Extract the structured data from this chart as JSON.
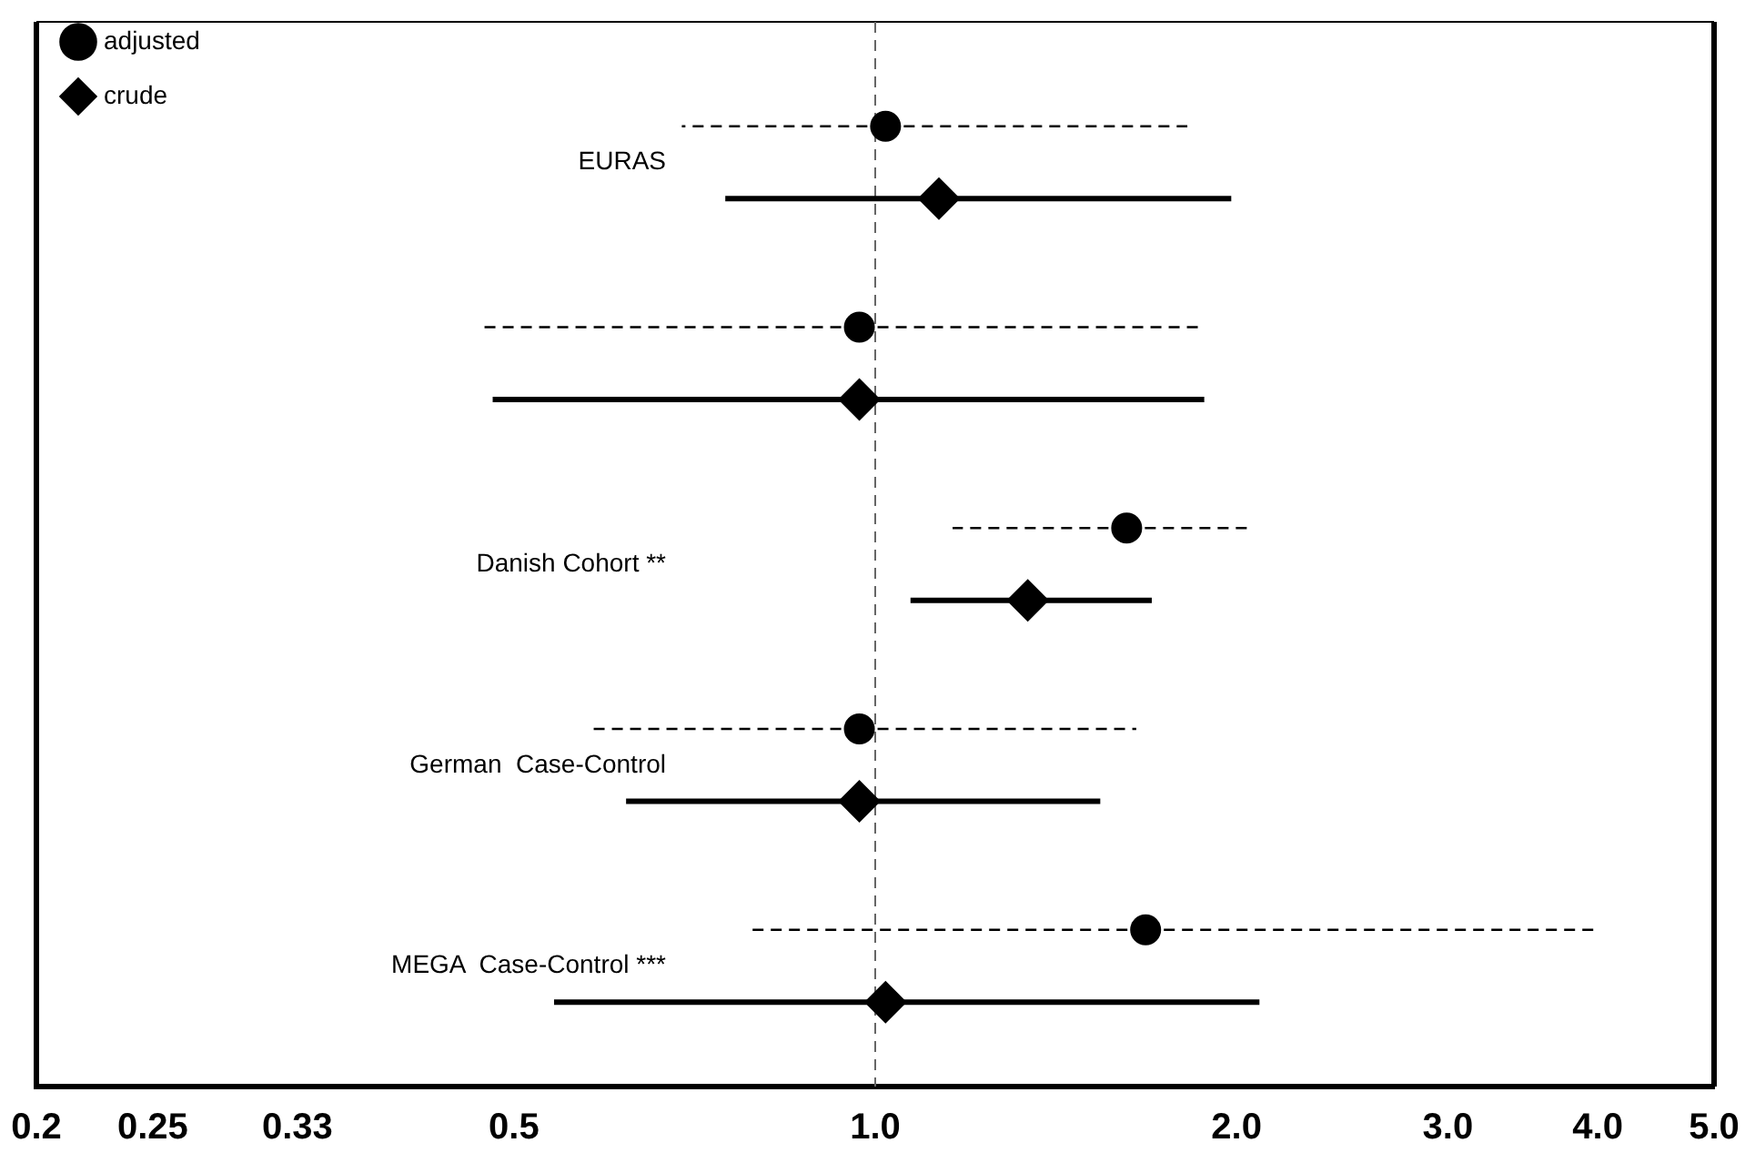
{
  "chart_data": {
    "type": "scatter",
    "orientation": "horizontal",
    "categories": [
      "EURAS",
      null,
      "Danish Cohort **",
      "German  Case-Control",
      "MEGA  Case-Control ***"
    ],
    "xlim": [
      0.2,
      5.0
    ],
    "xticks": [
      0.2,
      0.25,
      0.33,
      0.5,
      {
        "value": 1,
        "label": "1.0"
      },
      {
        "value": 2,
        "label": "2.0"
      },
      {
        "value": 3,
        "label": "3.0"
      },
      {
        "value": 4,
        "label": "4.0"
      },
      {
        "value": 5,
        "label": "5.0"
      }
    ],
    "series": [
      {
        "name": "adjusted",
        "color": "#000000",
        "marker": "circle",
        "line_style": "dashed",
        "values": [
          1.02,
          0.97,
          1.62,
          0.97,
          1.68
        ],
        "errors": [
          [
            0.69,
            1.82
          ],
          [
            0.47,
            1.86
          ],
          [
            1.16,
            2.05
          ],
          [
            0.58,
            1.65
          ],
          [
            0.79,
            3.97
          ]
        ]
      },
      {
        "name": "crude",
        "color": "#000000",
        "marker": "diamond",
        "line_style": "solid",
        "values": [
          1.13,
          0.97,
          1.34,
          0.97,
          1.02
        ],
        "errors": [
          [
            0.75,
            1.98
          ],
          [
            0.48,
            1.88
          ],
          [
            1.07,
            1.7
          ],
          [
            0.62,
            1.54
          ],
          [
            0.54,
            2.09
          ]
        ]
      }
    ],
    "ref_lines": [
      {
        "axis": "x",
        "value": 1,
        "line_style": "dashed",
        "color": "#666666"
      }
    ],
    "log": "x",
    "legend": "top left",
    "grid": false,
    "tick_labels": "x"
  }
}
